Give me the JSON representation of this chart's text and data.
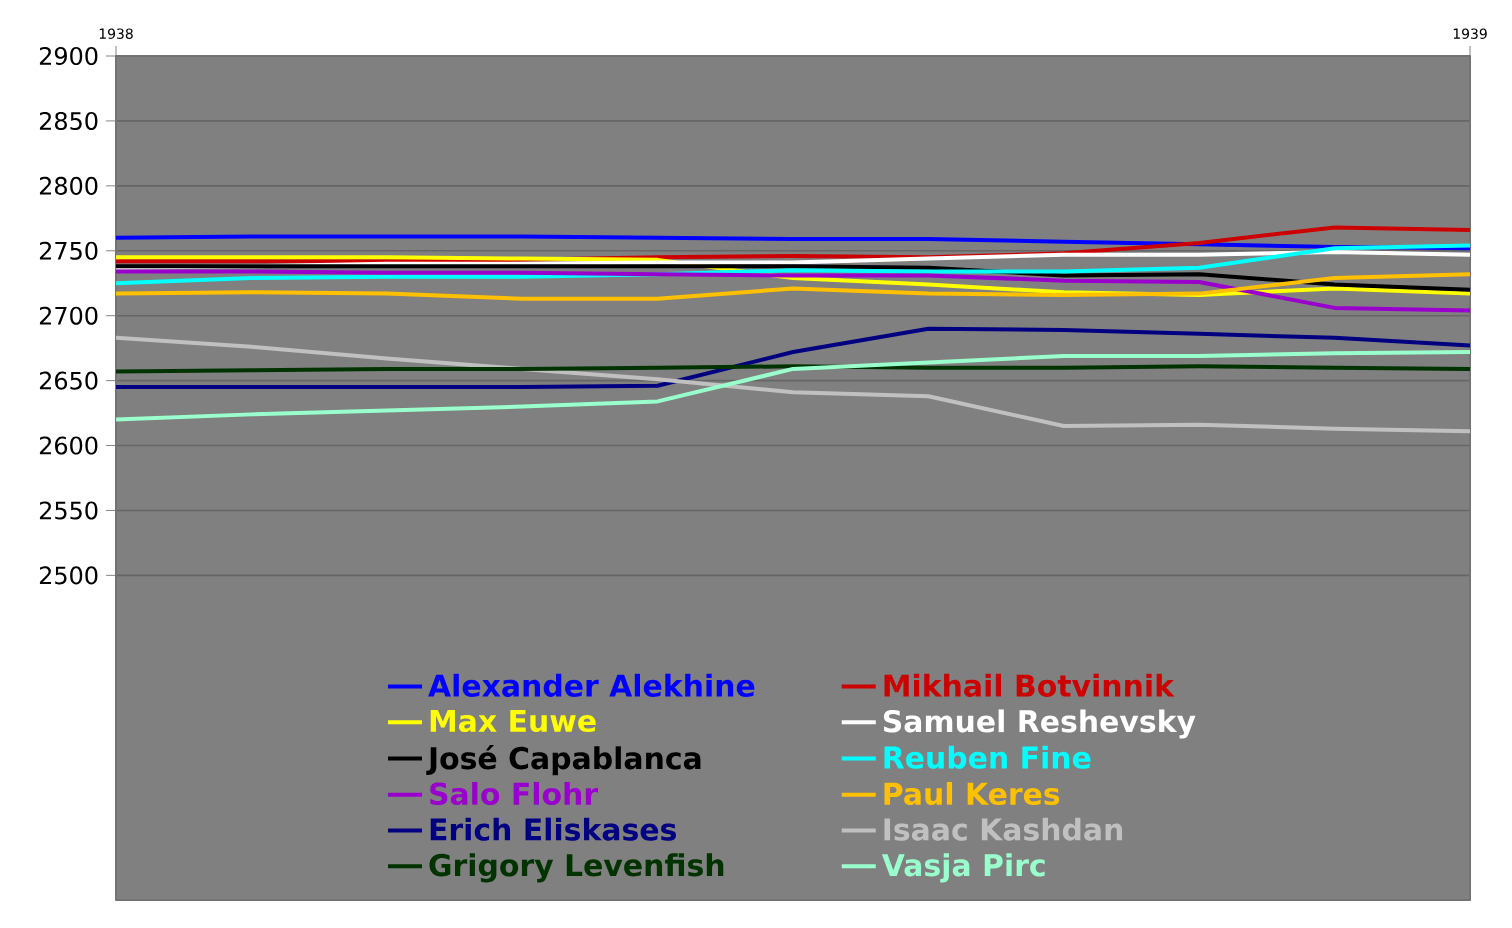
{
  "chart_data": {
    "type": "line",
    "x": [
      1938,
      1938.1,
      1938.2,
      1938.3,
      1938.4,
      1938.5,
      1938.6,
      1938.7,
      1938.8,
      1938.9,
      1939
    ],
    "xlim": [
      1938,
      1939
    ],
    "xticks": [
      1938,
      1939
    ],
    "ylim": [
      2250,
      2900
    ],
    "yticks": [
      2500,
      2550,
      2600,
      2650,
      2700,
      2750,
      2800,
      2850,
      2900
    ],
    "grid": "y",
    "legend": "bottom",
    "series": [
      {
        "name": "Alexander Alekhine",
        "color": "#0000ff",
        "values": [
          2760,
          2761,
          2761,
          2761,
          2760,
          2759,
          2759,
          2757,
          2755,
          2753,
          2752
        ]
      },
      {
        "name": "Mikhail Botvinnik",
        "color": "#cc0000",
        "values": [
          2742,
          2742,
          2742,
          2743,
          2745,
          2746,
          2745,
          2748,
          2756,
          2768,
          2766
        ]
      },
      {
        "name": "Max Euwe",
        "color": "#ffff00",
        "values": [
          2745,
          2745,
          2745,
          2744,
          2743,
          2729,
          2724,
          2718,
          2716,
          2721,
          2717
        ]
      },
      {
        "name": "Samuel Reshevsky",
        "color": "#ffffff",
        "values": [
          2737,
          2738,
          2740,
          2740,
          2741,
          2741,
          2744,
          2747,
          2747,
          2749,
          2747
        ]
      },
      {
        "name": "José Capablanca",
        "color": "#000000",
        "values": [
          2738,
          2738,
          2738,
          2738,
          2738,
          2738,
          2737,
          2731,
          2732,
          2724,
          2720
        ]
      },
      {
        "name": "Reuben Fine",
        "color": "#00ffff",
        "values": [
          2725,
          2729,
          2730,
          2730,
          2732,
          2735,
          2734,
          2734,
          2737,
          2752,
          2754
        ]
      },
      {
        "name": "Salo Flohr",
        "color": "#9900cc",
        "values": [
          2734,
          2734,
          2733,
          2733,
          2732,
          2731,
          2731,
          2727,
          2726,
          2706,
          2704
        ]
      },
      {
        "name": "Paul Keres",
        "color": "#ffc000",
        "values": [
          2717,
          2718,
          2717,
          2713,
          2713,
          2721,
          2717,
          2716,
          2717,
          2729,
          2732
        ]
      },
      {
        "name": "Erich Eliskases",
        "color": "#000080",
        "values": [
          2645,
          2645,
          2645,
          2645,
          2646,
          2672,
          2690,
          2689,
          2686,
          2683,
          2677
        ]
      },
      {
        "name": "Isaac Kashdan",
        "color": "#c0c0c0",
        "values": [
          2683,
          2676,
          2667,
          2659,
          2651,
          2641,
          2638,
          2615,
          2616,
          2613,
          2611
        ]
      },
      {
        "name": "Grigory Levenfish",
        "color": "#003300",
        "values": [
          2657,
          2658,
          2659,
          2659,
          2660,
          2661,
          2660,
          2660,
          2661,
          2660,
          2659
        ]
      },
      {
        "name": "Vasja Pirc",
        "color": "#99ffcc",
        "values": [
          2620,
          2624,
          2627,
          2630,
          2634,
          2659,
          2664,
          2669,
          2669,
          2671,
          2672
        ]
      }
    ]
  }
}
